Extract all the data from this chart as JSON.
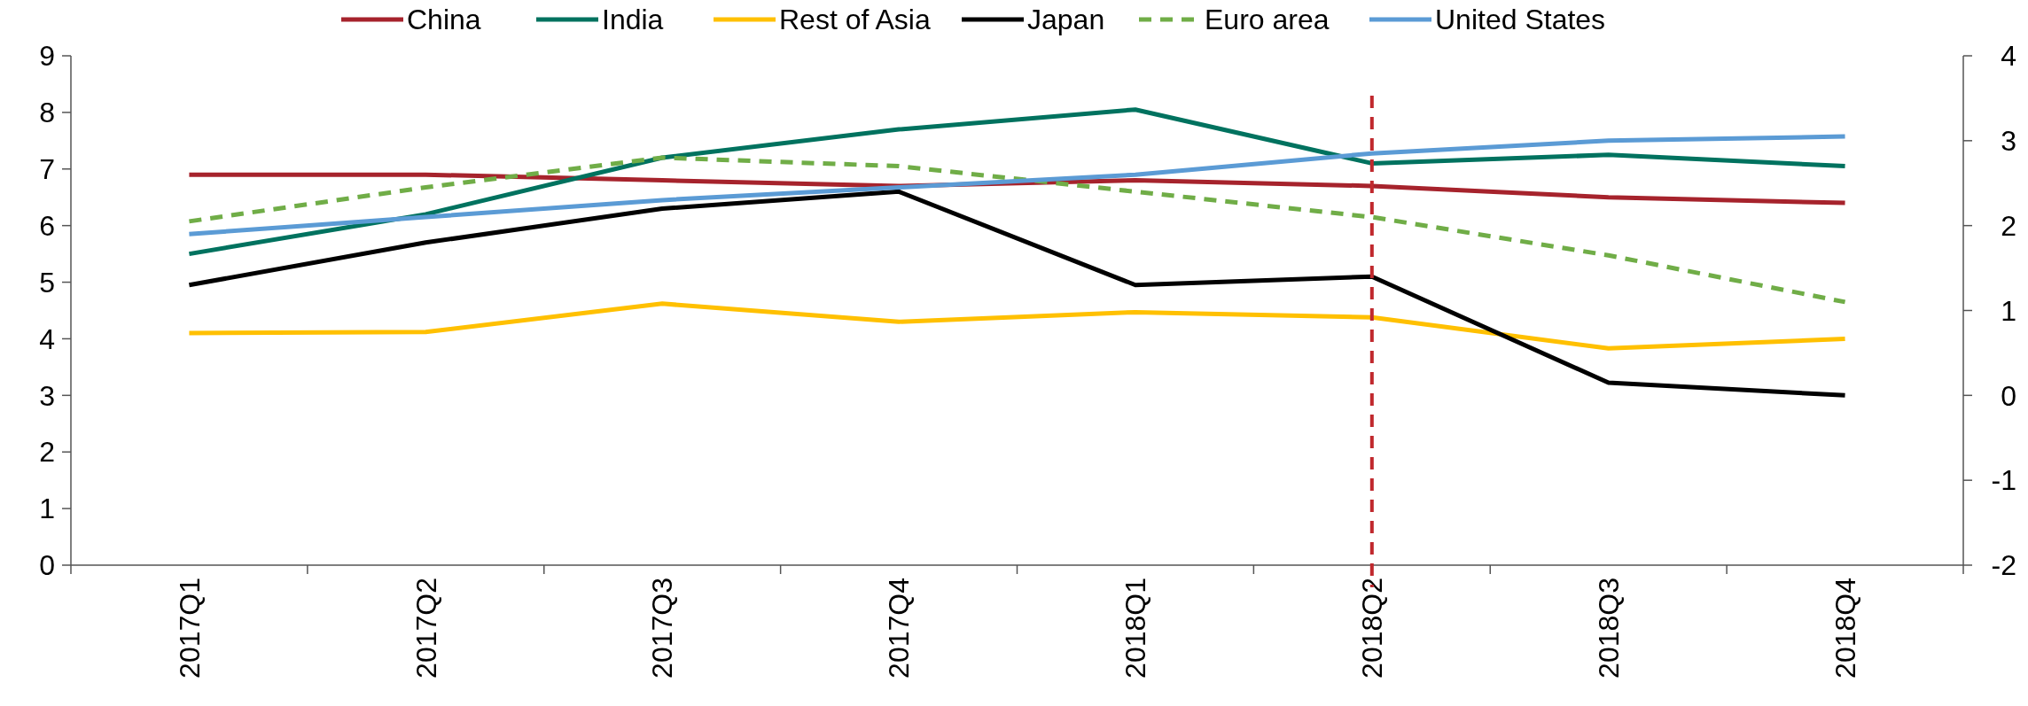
{
  "chart_data": {
    "type": "line",
    "categories": [
      "2017Q1",
      "2017Q2",
      "2017Q3",
      "2017Q4",
      "2018Q1",
      "2018Q2",
      "2018Q3",
      "2018Q4"
    ],
    "series": [
      {
        "name": "China",
        "color": "#a6232c",
        "values": [
          6.9,
          6.9,
          6.8,
          6.7,
          6.8,
          6.7,
          6.5,
          6.4
        ]
      },
      {
        "name": "India",
        "color": "#00725f",
        "values": [
          5.5,
          6.2,
          7.2,
          7.7,
          8.05,
          7.1,
          7.25,
          7.05
        ]
      },
      {
        "name": "Rest of Asia",
        "color": "#ffc000",
        "values": [
          4.1,
          4.12,
          4.62,
          4.3,
          4.47,
          4.38,
          3.83,
          4.0
        ]
      },
      {
        "name": "Japan",
        "color": "#000000",
        "axis": "y2",
        "values": [
          1.3,
          1.8,
          2.2,
          2.4,
          1.3,
          1.4,
          0.15,
          0.0
        ]
      },
      {
        "name": "Euro area",
        "color": "#70ad47",
        "axis": "y2",
        "line_style": "dashed",
        "values": [
          2.05,
          2.45,
          2.8,
          2.7,
          2.4,
          2.1,
          1.65,
          1.1
        ]
      },
      {
        "name": "United States",
        "color": "#5b9bd5",
        "axis": "y2",
        "values": [
          1.9,
          2.1,
          2.3,
          2.45,
          2.6,
          2.85,
          3.0,
          3.05
        ]
      }
    ],
    "ylim": [
      0,
      9
    ],
    "yticks": [
      0,
      1,
      2,
      3,
      4,
      5,
      6,
      7,
      8,
      9
    ],
    "y2lim": [
      -2,
      4
    ],
    "y2ticks": [
      -2,
      -1,
      0,
      1,
      2,
      3,
      4
    ],
    "ref_lines": [
      {
        "axis": "x",
        "value": "2018Q2",
        "color": "#c0282d",
        "line_style": "dashed"
      }
    ],
    "legend": "top",
    "grid": false,
    "line_style": "solid"
  }
}
